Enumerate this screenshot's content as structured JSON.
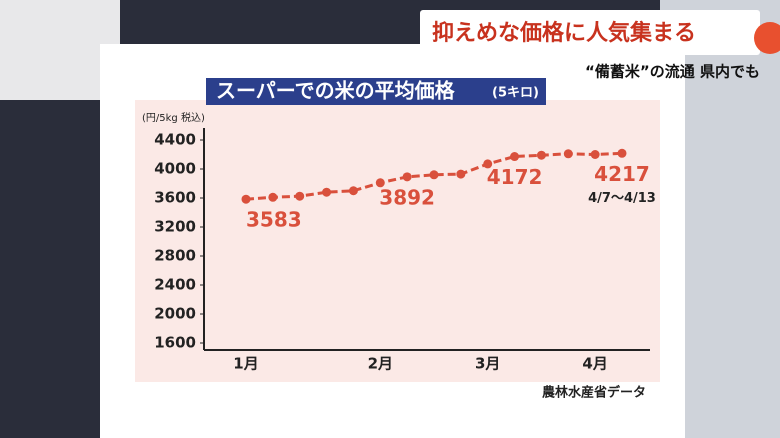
{
  "caption": {
    "headline": "抑えめな価格に人気集まる",
    "sub": "“備蓄米”の流通 県内でも"
  },
  "chart_data": {
    "type": "line",
    "title": "スーパーでの米の平均価格",
    "subtitle": "(5キロ)",
    "y_label": "(円/5kg 税込)",
    "source": "農林水産省データ",
    "categories": [
      "1月",
      null,
      null,
      null,
      null,
      "2月",
      null,
      null,
      null,
      "3月",
      null,
      null,
      null,
      "4月",
      null
    ],
    "series": [
      {
        "name": "平均価格",
        "color": "#d9503c",
        "values": [
          3583,
          3610,
          3625,
          3680,
          3700,
          3810,
          3892,
          3920,
          3930,
          4070,
          4172,
          4190,
          4210,
          4200,
          4217
        ],
        "value_labels": [
          "3583",
          null,
          null,
          null,
          null,
          null,
          "3892",
          null,
          null,
          null,
          "4172",
          null,
          null,
          null,
          "4217"
        ]
      }
    ],
    "last_period": "4/7〜4/13",
    "ylim": [
      1600,
      4400
    ],
    "yticks": [
      1600,
      2000,
      2400,
      2800,
      3200,
      3600,
      4000,
      4400
    ],
    "grid": false
  }
}
